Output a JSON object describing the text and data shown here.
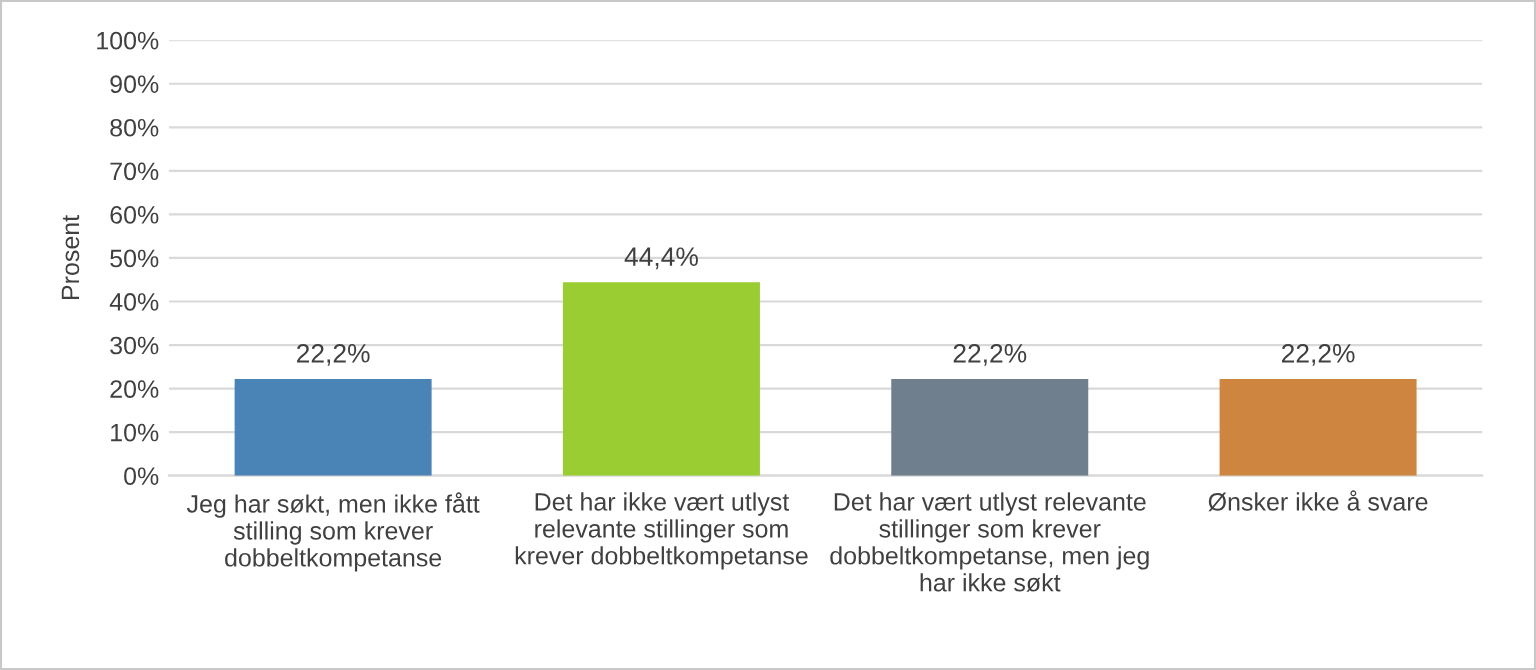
{
  "chart_data": {
    "type": "bar",
    "ylabel": "Prosent",
    "categories": [
      "Jeg har søkt, men ikke fått\nstilling som krever\ndobbeltkompetanse",
      "Det har ikke vært utlyst\nrelevante stillinger som\nkrever dobbeltkompetanse",
      "Det har vært utlyst relevante\nstillinger som krever\ndobbeltkompetanse, men jeg\nhar ikke søkt",
      "Ønsker ikke å svare"
    ],
    "values": [
      22.2,
      44.4,
      22.2,
      22.2
    ],
    "colors": [
      "#4a84b7",
      "#9acd32",
      "#6f7f8e",
      "#cd853f"
    ],
    "value_labels": [
      "22,2%",
      "44,4%",
      "22,2%",
      "22,2%"
    ],
    "ylim": [
      0,
      100
    ],
    "yticks": [
      {
        "value": 0,
        "label": "0%"
      },
      {
        "value": 10,
        "label": "10%"
      },
      {
        "value": 20,
        "label": "20%"
      },
      {
        "value": 30,
        "label": "30%"
      },
      {
        "value": 40,
        "label": "40%"
      },
      {
        "value": 50,
        "label": "50%"
      },
      {
        "value": 60,
        "label": "60%"
      },
      {
        "value": 70,
        "label": "70%"
      },
      {
        "value": 80,
        "label": "80%"
      },
      {
        "value": 90,
        "label": "90%"
      },
      {
        "value": 100,
        "label": "100%"
      }
    ],
    "grid": "y"
  }
}
